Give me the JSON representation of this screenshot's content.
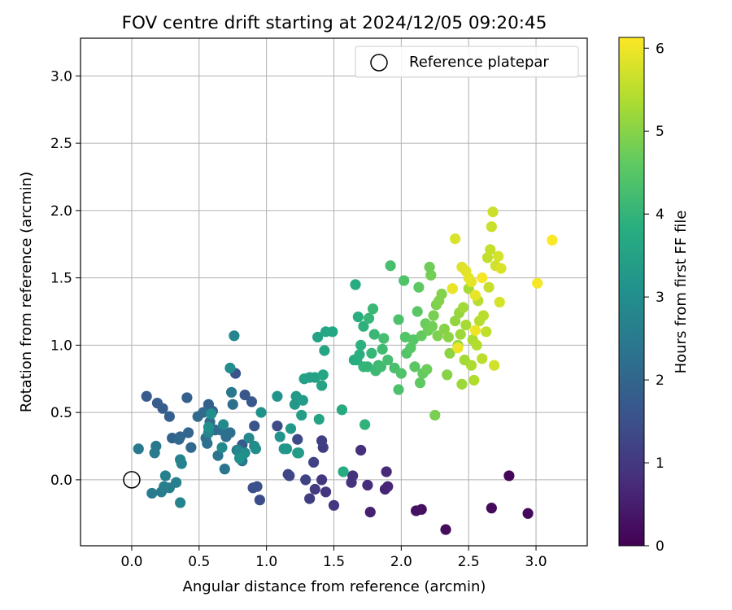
{
  "chart_data": {
    "type": "scatter",
    "title": "FOV centre drift starting at 2024/12/05 09:20:45",
    "xlabel": "Angular distance from reference (arcmin)",
    "ylabel": "Rotation from reference (arcmin)",
    "xlim": [
      -0.38,
      3.38
    ],
    "ylim": [
      -0.49,
      3.28
    ],
    "xticks": [
      0.0,
      0.5,
      1.0,
      1.5,
      2.0,
      2.5,
      3.0
    ],
    "xtick_labels": [
      "0.0",
      "0.5",
      "1.0",
      "1.5",
      "2.0",
      "2.5",
      "3.0"
    ],
    "yticks": [
      0.0,
      0.5,
      1.0,
      1.5,
      2.0,
      2.5,
      3.0
    ],
    "ytick_labels": [
      "0.0",
      "0.5",
      "1.0",
      "1.5",
      "2.0",
      "2.5",
      "3.0"
    ],
    "grid": true,
    "legend": {
      "placement": "top-right",
      "entries": [
        {
          "label": "Reference platepar",
          "marker": "open-circle",
          "x": 0.0,
          "y": 0.0
        }
      ]
    },
    "colorbar": {
      "label": "Hours from first FF file",
      "colormap": "viridis",
      "range": [
        0,
        6.13
      ],
      "ticks": [
        0,
        1,
        2,
        3,
        4,
        5,
        6
      ],
      "tick_labels": [
        "0",
        "1",
        "2",
        "3",
        "4",
        "5",
        "6"
      ]
    },
    "points": [
      [
        2.8,
        0.03,
        0.1
      ],
      [
        2.67,
        -0.21,
        0.15
      ],
      [
        2.94,
        -0.25,
        0.15
      ],
      [
        2.33,
        -0.37,
        0.2
      ],
      [
        2.15,
        -0.22,
        0.25
      ],
      [
        2.11,
        -0.23,
        0.3
      ],
      [
        1.77,
        -0.24,
        0.55
      ],
      [
        1.88,
        -0.07,
        0.6
      ],
      [
        1.9,
        -0.05,
        0.65
      ],
      [
        1.89,
        0.06,
        0.7
      ],
      [
        1.75,
        -0.04,
        0.75
      ],
      [
        1.7,
        0.22,
        0.8
      ],
      [
        1.64,
        0.03,
        0.85
      ],
      [
        1.63,
        -0.02,
        0.9
      ],
      [
        1.44,
        -0.09,
        0.95
      ],
      [
        1.5,
        -0.19,
        1.0
      ],
      [
        1.41,
        0.0,
        1.0
      ],
      [
        1.36,
        -0.07,
        1.05
      ],
      [
        1.32,
        -0.14,
        1.1
      ],
      [
        1.42,
        0.24,
        1.1
      ],
      [
        1.41,
        0.29,
        1.15
      ],
      [
        1.29,
        0.0,
        1.2
      ],
      [
        1.35,
        0.13,
        1.2
      ],
      [
        1.16,
        0.04,
        1.25
      ],
      [
        1.17,
        0.03,
        1.3
      ],
      [
        1.23,
        0.3,
        1.35
      ],
      [
        1.08,
        0.4,
        1.4
      ],
      [
        0.95,
        -0.15,
        1.45
      ],
      [
        0.9,
        -0.06,
        1.5
      ],
      [
        0.93,
        -0.05,
        1.5
      ],
      [
        0.91,
        0.4,
        1.55
      ],
      [
        0.77,
        0.79,
        1.6
      ],
      [
        0.84,
        0.63,
        1.65
      ],
      [
        0.89,
        0.58,
        1.7
      ],
      [
        0.82,
        0.26,
        1.75
      ],
      [
        0.11,
        0.62,
        1.75
      ],
      [
        0.19,
        0.57,
        1.8
      ],
      [
        0.23,
        0.53,
        1.8
      ],
      [
        0.28,
        0.47,
        1.85
      ],
      [
        0.41,
        0.61,
        1.85
      ],
      [
        0.57,
        0.56,
        1.9
      ],
      [
        0.6,
        0.51,
        1.9
      ],
      [
        0.3,
        0.31,
        1.95
      ],
      [
        0.36,
        0.32,
        2.0
      ],
      [
        0.42,
        0.35,
        2.0
      ],
      [
        0.35,
        0.3,
        2.05
      ],
      [
        0.44,
        0.24,
        2.05
      ],
      [
        0.49,
        0.47,
        2.1
      ],
      [
        0.53,
        0.5,
        2.1
      ],
      [
        0.58,
        0.43,
        2.15
      ],
      [
        0.62,
        0.37,
        2.15
      ],
      [
        0.66,
        0.37,
        2.2
      ],
      [
        0.7,
        0.32,
        2.2
      ],
      [
        0.73,
        0.35,
        2.25
      ],
      [
        0.75,
        0.56,
        2.25
      ],
      [
        0.55,
        0.31,
        2.3
      ],
      [
        0.56,
        0.27,
        2.3
      ],
      [
        0.64,
        0.18,
        2.35
      ],
      [
        0.78,
        0.22,
        2.35
      ],
      [
        0.82,
        0.14,
        2.4
      ],
      [
        0.69,
        0.08,
        2.4
      ],
      [
        0.74,
        0.65,
        2.45
      ],
      [
        0.18,
        0.25,
        2.45
      ],
      [
        0.17,
        0.2,
        2.5
      ],
      [
        0.05,
        0.23,
        2.5
      ],
      [
        0.15,
        -0.1,
        2.55
      ],
      [
        0.22,
        -0.09,
        2.55
      ],
      [
        0.24,
        -0.05,
        2.6
      ],
      [
        0.28,
        -0.06,
        2.6
      ],
      [
        0.33,
        -0.02,
        2.65
      ],
      [
        0.25,
        0.03,
        2.65
      ],
      [
        0.36,
        0.15,
        2.7
      ],
      [
        0.37,
        0.12,
        2.7
      ],
      [
        0.36,
        -0.17,
        2.75
      ],
      [
        0.57,
        0.35,
        2.75
      ],
      [
        0.76,
        1.07,
        2.8
      ],
      [
        0.79,
        0.22,
        2.8
      ],
      [
        0.91,
        0.25,
        2.85
      ],
      [
        0.87,
        0.31,
        2.85
      ],
      [
        0.67,
        0.24,
        2.9
      ],
      [
        0.68,
        0.41,
        2.9
      ],
      [
        0.73,
        0.83,
        2.95
      ],
      [
        0.84,
        0.2,
        3.0
      ],
      [
        0.92,
        0.23,
        3.0
      ],
      [
        0.57,
        0.39,
        3.05
      ],
      [
        0.59,
        0.49,
        3.05
      ],
      [
        0.8,
        0.16,
        3.1
      ],
      [
        0.96,
        0.5,
        3.1
      ],
      [
        1.08,
        0.62,
        3.15
      ],
      [
        1.1,
        0.32,
        3.15
      ],
      [
        1.13,
        0.23,
        3.2
      ],
      [
        1.15,
        0.23,
        3.2
      ],
      [
        1.18,
        0.38,
        3.25
      ],
      [
        1.21,
        0.56,
        3.25
      ],
      [
        1.22,
        0.62,
        3.3
      ],
      [
        1.23,
        0.2,
        3.3
      ],
      [
        1.24,
        0.2,
        3.35
      ],
      [
        1.27,
        0.59,
        3.35
      ],
      [
        1.26,
        0.48,
        3.4
      ],
      [
        1.28,
        0.75,
        3.45
      ],
      [
        1.32,
        0.76,
        3.45
      ],
      [
        1.36,
        0.76,
        3.5
      ],
      [
        1.38,
        1.06,
        3.5
      ],
      [
        1.39,
        0.45,
        3.55
      ],
      [
        1.41,
        0.7,
        3.55
      ],
      [
        1.42,
        0.78,
        3.6
      ],
      [
        1.43,
        0.96,
        3.6
      ],
      [
        1.44,
        1.1,
        3.65
      ],
      [
        1.49,
        1.1,
        3.65
      ],
      [
        1.56,
        0.52,
        3.7
      ],
      [
        1.57,
        0.06,
        3.75
      ],
      [
        1.66,
        1.45,
        3.75
      ],
      [
        1.65,
        0.89,
        3.8
      ],
      [
        1.67,
        0.89,
        3.8
      ],
      [
        1.68,
        1.21,
        3.85
      ],
      [
        1.69,
        0.93,
        3.85
      ],
      [
        1.7,
        1.0,
        3.9
      ],
      [
        1.72,
        1.14,
        3.9
      ],
      [
        1.73,
        0.41,
        3.95
      ],
      [
        1.72,
        0.84,
        4.0
      ],
      [
        1.75,
        0.84,
        4.0
      ],
      [
        1.76,
        1.2,
        4.05
      ],
      [
        1.78,
        0.94,
        4.05
      ],
      [
        1.79,
        1.27,
        4.1
      ],
      [
        1.8,
        1.08,
        4.1
      ],
      [
        1.81,
        0.81,
        4.15
      ],
      [
        1.83,
        0.85,
        4.15
      ],
      [
        1.85,
        0.84,
        4.2
      ],
      [
        1.86,
        0.97,
        4.2
      ],
      [
        1.87,
        1.05,
        4.25
      ],
      [
        1.9,
        0.89,
        4.25
      ],
      [
        1.92,
        1.59,
        4.3
      ],
      [
        1.95,
        0.83,
        4.3
      ],
      [
        1.98,
        0.67,
        4.35
      ],
      [
        1.98,
        1.19,
        4.35
      ],
      [
        2.0,
        0.79,
        4.4
      ],
      [
        2.02,
        1.48,
        4.4
      ],
      [
        2.03,
        1.06,
        4.45
      ],
      [
        2.04,
        0.94,
        4.45
      ],
      [
        2.07,
        0.98,
        4.5
      ],
      [
        2.09,
        1.04,
        4.5
      ],
      [
        2.1,
        0.84,
        4.55
      ],
      [
        2.12,
        1.25,
        4.55
      ],
      [
        2.13,
        1.43,
        4.6
      ],
      [
        2.14,
        0.72,
        4.6
      ],
      [
        2.15,
        1.07,
        4.65
      ],
      [
        2.16,
        0.79,
        4.65
      ],
      [
        2.18,
        1.16,
        4.7
      ],
      [
        2.19,
        0.82,
        4.7
      ],
      [
        2.2,
        1.11,
        4.75
      ],
      [
        2.21,
        1.58,
        4.75
      ],
      [
        2.22,
        1.52,
        4.8
      ],
      [
        2.23,
        1.14,
        4.8
      ],
      [
        2.24,
        1.22,
        4.85
      ],
      [
        2.25,
        0.48,
        4.85
      ],
      [
        2.26,
        1.3,
        4.9
      ],
      [
        2.27,
        1.07,
        4.9
      ],
      [
        2.28,
        1.33,
        4.95
      ],
      [
        2.3,
        1.38,
        4.95
      ],
      [
        2.32,
        1.12,
        5.0
      ],
      [
        2.34,
        0.78,
        5.0
      ],
      [
        2.35,
        1.06,
        5.05
      ],
      [
        2.36,
        0.94,
        5.05
      ],
      [
        2.38,
        1.42,
        5.1
      ],
      [
        2.4,
        1.18,
        5.1
      ],
      [
        2.42,
        1.0,
        5.15
      ],
      [
        2.43,
        1.24,
        5.15
      ],
      [
        2.44,
        1.08,
        5.2
      ],
      [
        2.45,
        0.71,
        5.2
      ],
      [
        2.46,
        1.28,
        5.25
      ],
      [
        2.47,
        0.89,
        5.25
      ],
      [
        2.48,
        1.15,
        5.3
      ],
      [
        2.5,
        1.42,
        5.3
      ],
      [
        2.52,
        0.85,
        5.35
      ],
      [
        2.53,
        1.04,
        5.35
      ],
      [
        2.54,
        0.74,
        5.4
      ],
      [
        2.56,
        1.0,
        5.4
      ],
      [
        2.57,
        1.33,
        5.45
      ],
      [
        2.58,
        1.18,
        5.45
      ],
      [
        2.6,
        0.9,
        5.5
      ],
      [
        2.61,
        1.22,
        5.5
      ],
      [
        2.63,
        1.1,
        5.55
      ],
      [
        2.64,
        1.65,
        5.55
      ],
      [
        2.65,
        1.43,
        5.6
      ],
      [
        2.66,
        1.71,
        5.6
      ],
      [
        2.67,
        1.88,
        5.65
      ],
      [
        2.68,
        1.99,
        5.65
      ],
      [
        2.69,
        0.85,
        5.7
      ],
      [
        2.7,
        1.59,
        5.7
      ],
      [
        2.72,
        1.66,
        5.75
      ],
      [
        2.73,
        1.32,
        5.75
      ],
      [
        2.74,
        1.57,
        5.8
      ],
      [
        2.4,
        1.79,
        5.8
      ],
      [
        2.45,
        1.58,
        5.85
      ],
      [
        2.48,
        1.55,
        5.85
      ],
      [
        2.5,
        1.5,
        5.9
      ],
      [
        2.52,
        1.47,
        5.9
      ],
      [
        2.55,
        1.37,
        5.95
      ],
      [
        2.38,
        1.42,
        5.95
      ],
      [
        2.42,
        0.98,
        6.0
      ],
      [
        2.55,
        1.11,
        6.0
      ],
      [
        2.6,
        1.5,
        6.05
      ],
      [
        3.01,
        1.46,
        6.05
      ],
      [
        3.12,
        1.78,
        6.1
      ]
    ]
  }
}
